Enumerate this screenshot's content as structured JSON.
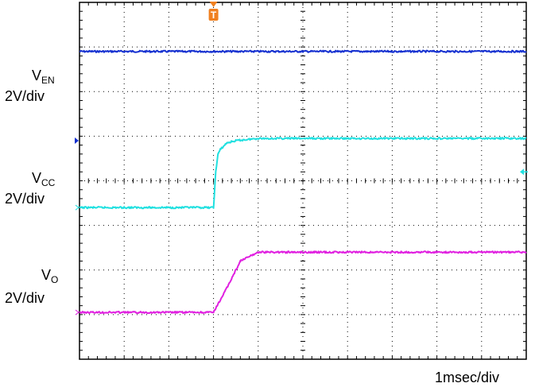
{
  "chart_data": {
    "type": "line",
    "title": "",
    "x_unit": "ms",
    "xlim": [
      0,
      10
    ],
    "ylim_div": [
      0,
      8
    ],
    "grid": true,
    "xlabel": "1msec/div",
    "trigger_marker": {
      "label": "T",
      "x": 3.0,
      "color": "#f08020"
    },
    "series": [
      {
        "label_main": "V",
        "label_sub": "EN",
        "label_scale": "2V/div",
        "color": "#1530d0",
        "ground_marker_div": 4.9,
        "x": [
          0,
          10
        ],
        "y": [
          6.9,
          6.9
        ]
      },
      {
        "label_main": "V",
        "label_sub": "CC",
        "label_scale": "2V/div",
        "color": "#20e0e0",
        "ground_marker_div": 3.4,
        "x": [
          0,
          3.0,
          3.05,
          3.1,
          3.15,
          3.3,
          3.5,
          4.0,
          10
        ],
        "y": [
          3.4,
          3.4,
          4.2,
          4.6,
          4.7,
          4.85,
          4.9,
          4.95,
          4.95
        ]
      },
      {
        "label_main": "V",
        "label_sub": "O",
        "label_scale": "2V/div",
        "color": "#e020e0",
        "ground_marker_div": 1.05,
        "x": [
          0,
          3.0,
          3.3,
          3.6,
          4.0,
          10
        ],
        "y": [
          1.05,
          1.05,
          1.6,
          2.2,
          2.4,
          2.4
        ]
      }
    ]
  }
}
